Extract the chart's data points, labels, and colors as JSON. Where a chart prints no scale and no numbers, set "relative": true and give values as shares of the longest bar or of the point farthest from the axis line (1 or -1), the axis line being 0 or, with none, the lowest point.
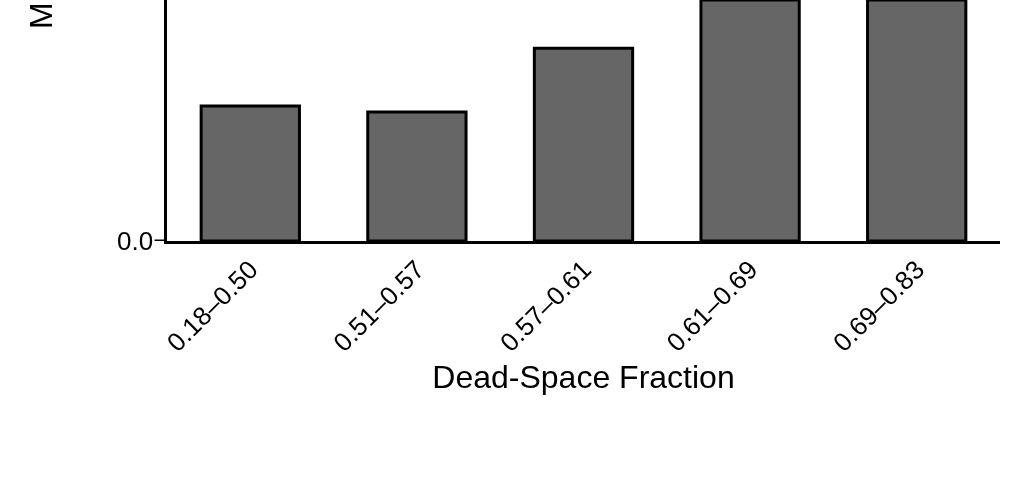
{
  "chart_data": {
    "type": "bar",
    "relative": true,
    "ylabel": "M",
    "xlabel": "Dead-Space Fraction",
    "categories": [
      "0.18–0.50",
      "0.51–0.57",
      "0.57–0.61",
      "0.61–0.69",
      "0.69–0.83"
    ],
    "values": [
      0.56,
      0.535,
      0.8,
      1,
      1
    ],
    "color": "#666666",
    "annotations": [
      "0.0"
    ]
  }
}
